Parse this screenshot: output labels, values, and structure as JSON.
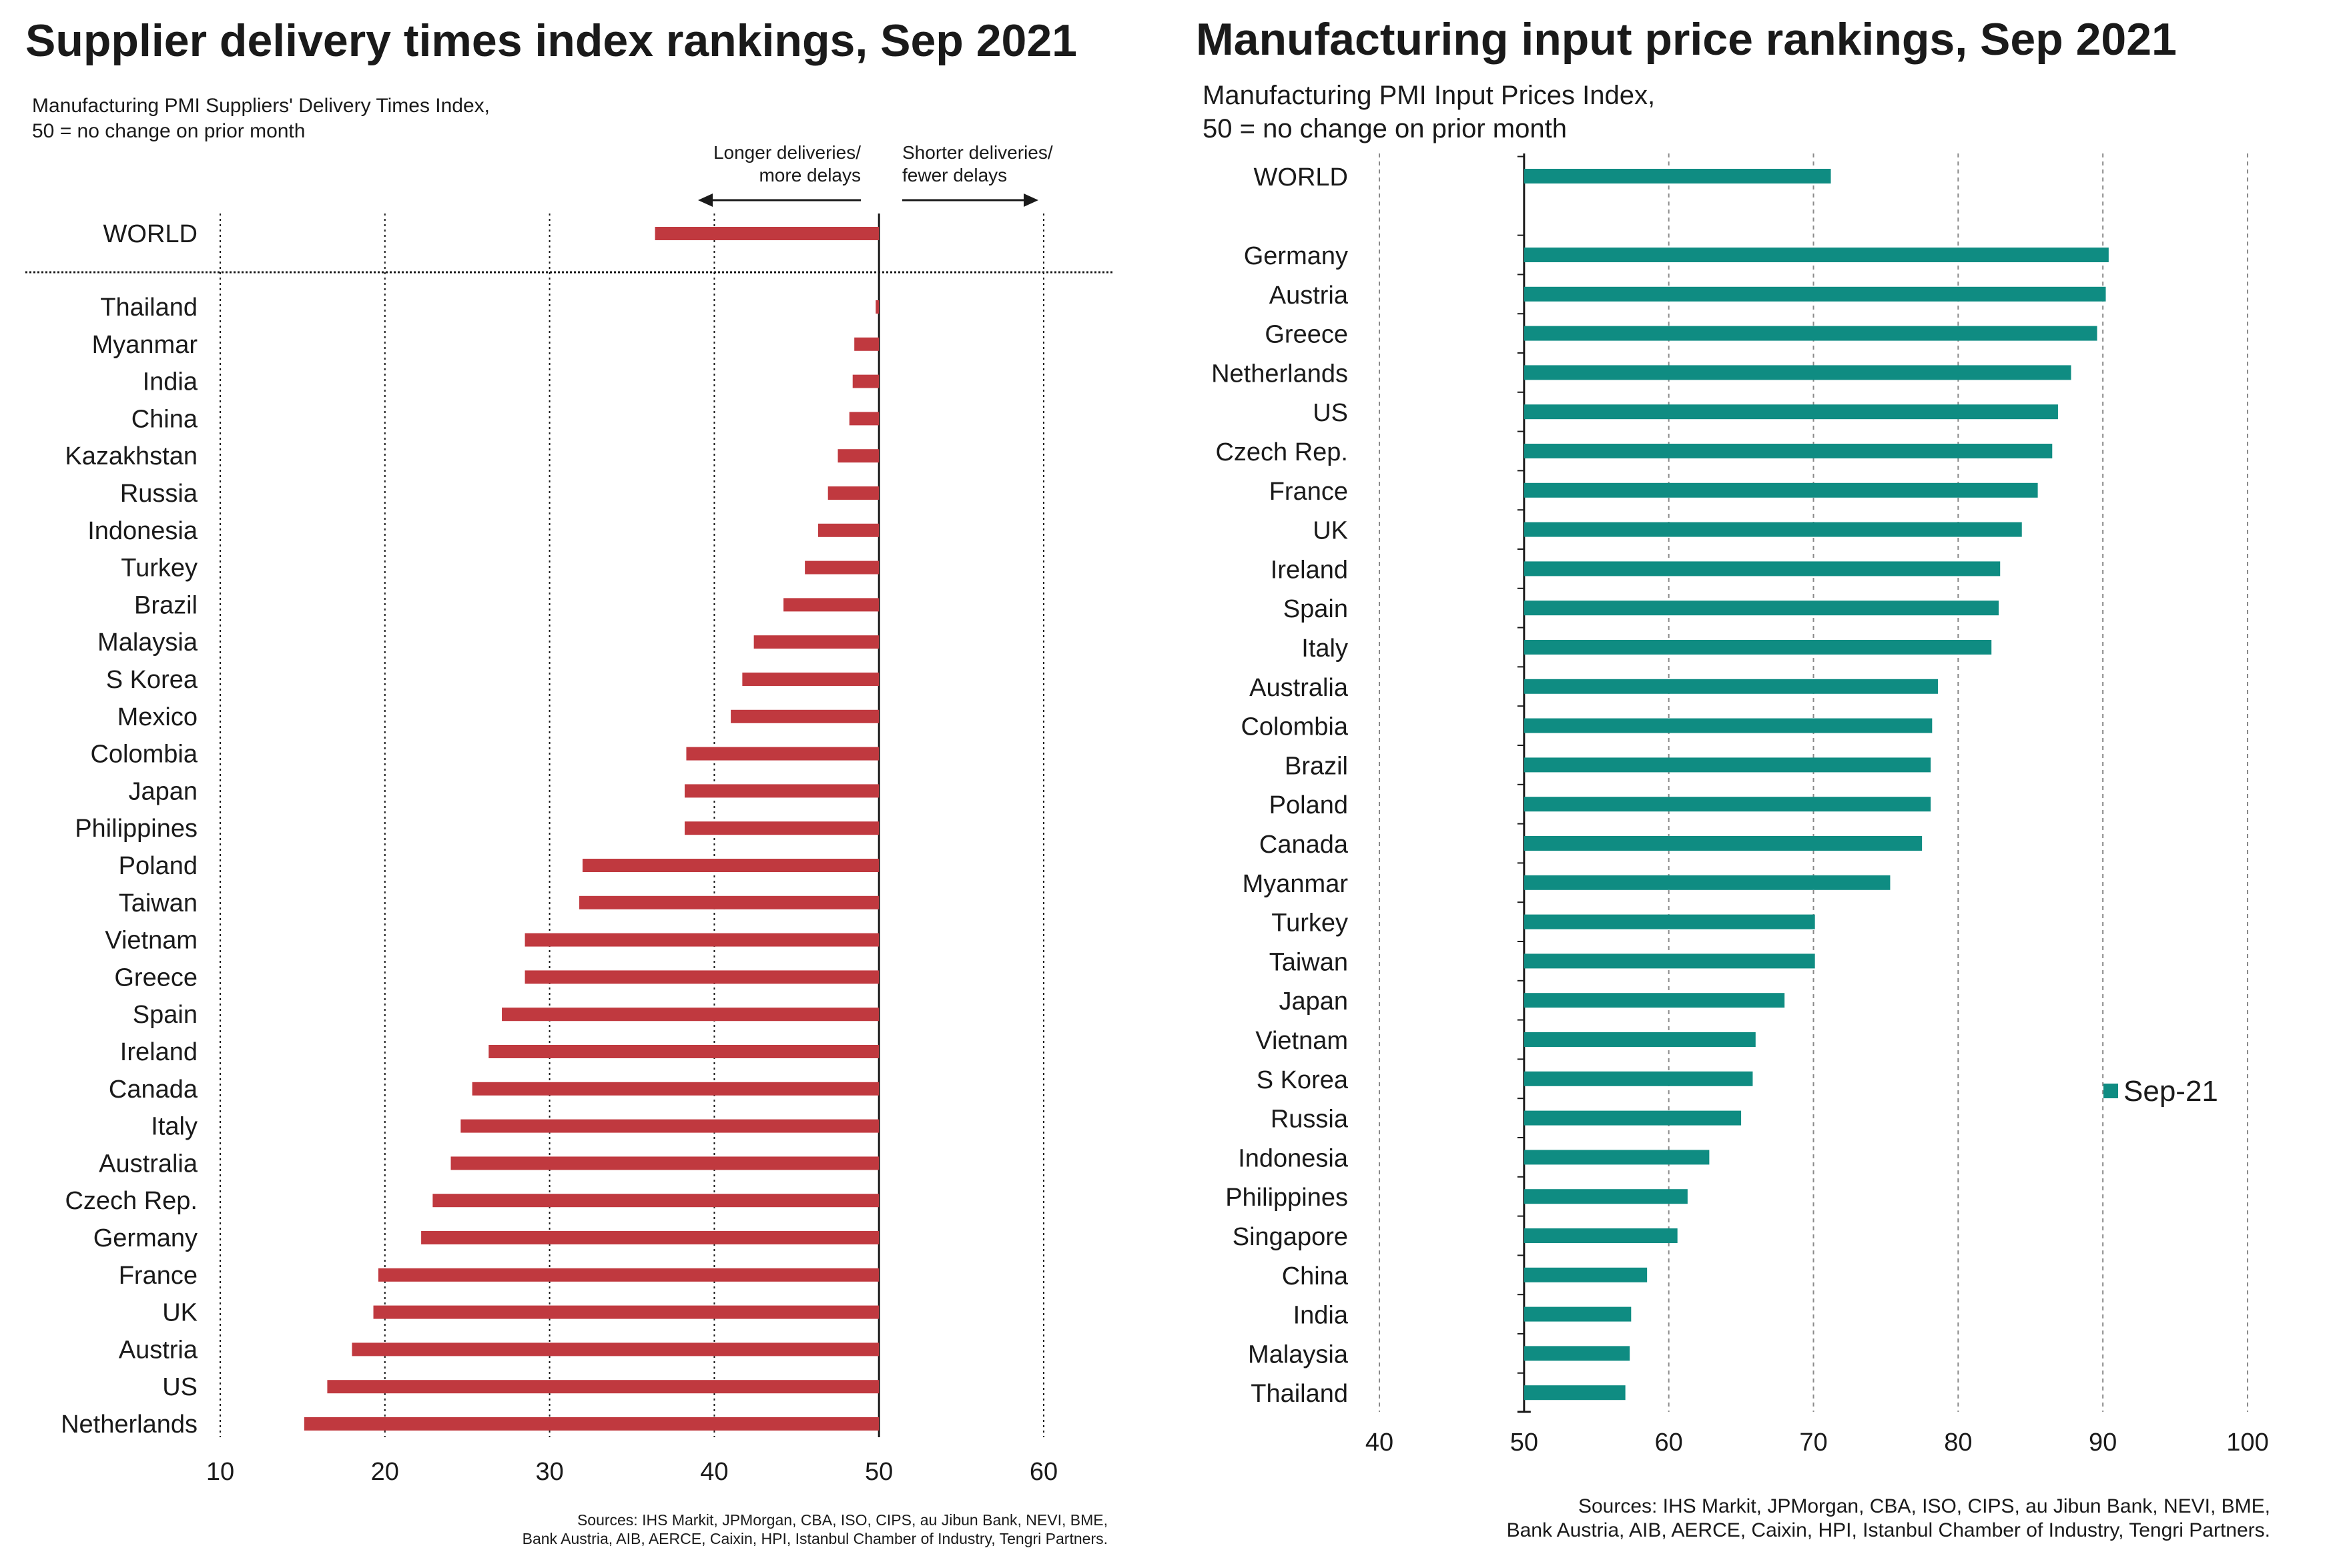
{
  "colors": {
    "left_bar": "#c0393f",
    "right_bar": "#0f8c82",
    "grid": "#8a8a8a",
    "axis": "#1a1a1a"
  },
  "chart_data": [
    {
      "type": "bar",
      "orientation": "horizontal",
      "title": "Supplier delivery times index rankings, Sep 2021",
      "subtitle": "Manufacturing PMI Suppliers' Delivery Times Index,\n50 = no change on prior month",
      "baseline": 50,
      "xlim": [
        10,
        60
      ],
      "xticks": [
        10,
        20,
        30,
        40,
        50,
        60
      ],
      "grid": "vertical dashed",
      "annotations": {
        "left": "Longer deliveries/\nmore delays",
        "right": "Shorter deliveries/\nfewer delays"
      },
      "categories": [
        "WORLD",
        "Thailand",
        "Myanmar",
        "India",
        "China",
        "Kazakhstan",
        "Russia",
        "Indonesia",
        "Turkey",
        "Brazil",
        "Malaysia",
        "S Korea",
        "Mexico",
        "Colombia",
        "Japan",
        "Philippines",
        "Poland",
        "Taiwan",
        "Vietnam",
        "Greece",
        "Spain",
        "Ireland",
        "Canada",
        "Italy",
        "Australia",
        "Czech Rep.",
        "Germany",
        "France",
        "UK",
        "Austria",
        "US",
        "Netherlands"
      ],
      "values": [
        36.4,
        49.8,
        48.5,
        48.4,
        48.2,
        47.5,
        46.9,
        46.3,
        45.5,
        44.2,
        42.4,
        41.7,
        41.0,
        38.3,
        38.2,
        38.2,
        32.0,
        31.8,
        28.5,
        28.5,
        27.1,
        26.3,
        25.3,
        24.6,
        24.0,
        22.9,
        22.2,
        19.6,
        19.3,
        18.0,
        16.5,
        15.1
      ],
      "sources": "Sources: IHS Markit, JPMorgan, CBA, ISO, CIPS, au Jibun Bank, NEVI, BME,\nBank Austria, AIB, AERCE, Caixin, HPI, Istanbul Chamber of Industry, Tengri Partners."
    },
    {
      "type": "bar",
      "orientation": "horizontal",
      "title": "Manufacturing input price rankings, Sep 2021",
      "subtitle": "Manufacturing PMI Input Prices Index,\n50 = no change on prior month",
      "baseline": 50,
      "xlim": [
        40,
        100
      ],
      "xticks": [
        40,
        50,
        60,
        70,
        80,
        90,
        100
      ],
      "grid": "vertical dashed",
      "legend": {
        "label": "Sep-21",
        "position": "right"
      },
      "categories": [
        "WORLD",
        "Germany",
        "Austria",
        "Greece",
        "Netherlands",
        "US",
        "Czech Rep.",
        "France",
        "UK",
        "Ireland",
        "Spain",
        "Italy",
        "Australia",
        "Colombia",
        "Brazil",
        "Poland",
        "Canada",
        "Myanmar",
        "Turkey",
        "Taiwan",
        "Japan",
        "Vietnam",
        "S Korea",
        "Russia",
        "Indonesia",
        "Philippines",
        "Singapore",
        "China",
        "India",
        "Malaysia",
        "Thailand"
      ],
      "series": [
        {
          "name": "Sep-21",
          "values": [
            71.2,
            90.4,
            90.2,
            89.6,
            87.8,
            86.9,
            86.5,
            85.5,
            84.4,
            82.9,
            82.8,
            82.3,
            78.6,
            78.2,
            78.1,
            78.1,
            77.5,
            75.3,
            70.1,
            70.1,
            68.0,
            66.0,
            65.8,
            65.0,
            62.8,
            61.3,
            60.6,
            58.5,
            57.4,
            57.3,
            57.0
          ]
        }
      ],
      "sources": "Sources: IHS Markit, JPMorgan, CBA, ISO, CIPS, au Jibun Bank, NEVI, BME,\nBank Austria, AIB, AERCE, Caixin, HPI, Istanbul Chamber of Industry, Tengri Partners."
    }
  ]
}
